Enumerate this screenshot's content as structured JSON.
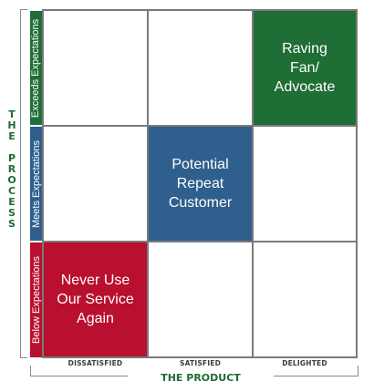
{
  "y_axis": {
    "title": "THE PROCESS",
    "rows": [
      {
        "label": "Exceeds Expectations",
        "color": "#1f6e35"
      },
      {
        "label": "Meets Expectations",
        "color": "#2f5f8c"
      },
      {
        "label": "Below Expectations",
        "color": "#b8102e"
      }
    ]
  },
  "x_axis": {
    "title": "THE PRODUCT",
    "columns": [
      "DISSATISFIED",
      "SATISFIED",
      "DELIGHTED"
    ]
  },
  "cells": {
    "raving_fan": {
      "text": "Raving\nFan/\nAdvocate",
      "color": "#1f6e35"
    },
    "potential_repeat": {
      "text": "Potential\nRepeat\nCustomer",
      "color": "#2f5f8c"
    },
    "never_use": {
      "text": "Never Use\nOur Service\nAgain",
      "color": "#b8102e"
    }
  }
}
